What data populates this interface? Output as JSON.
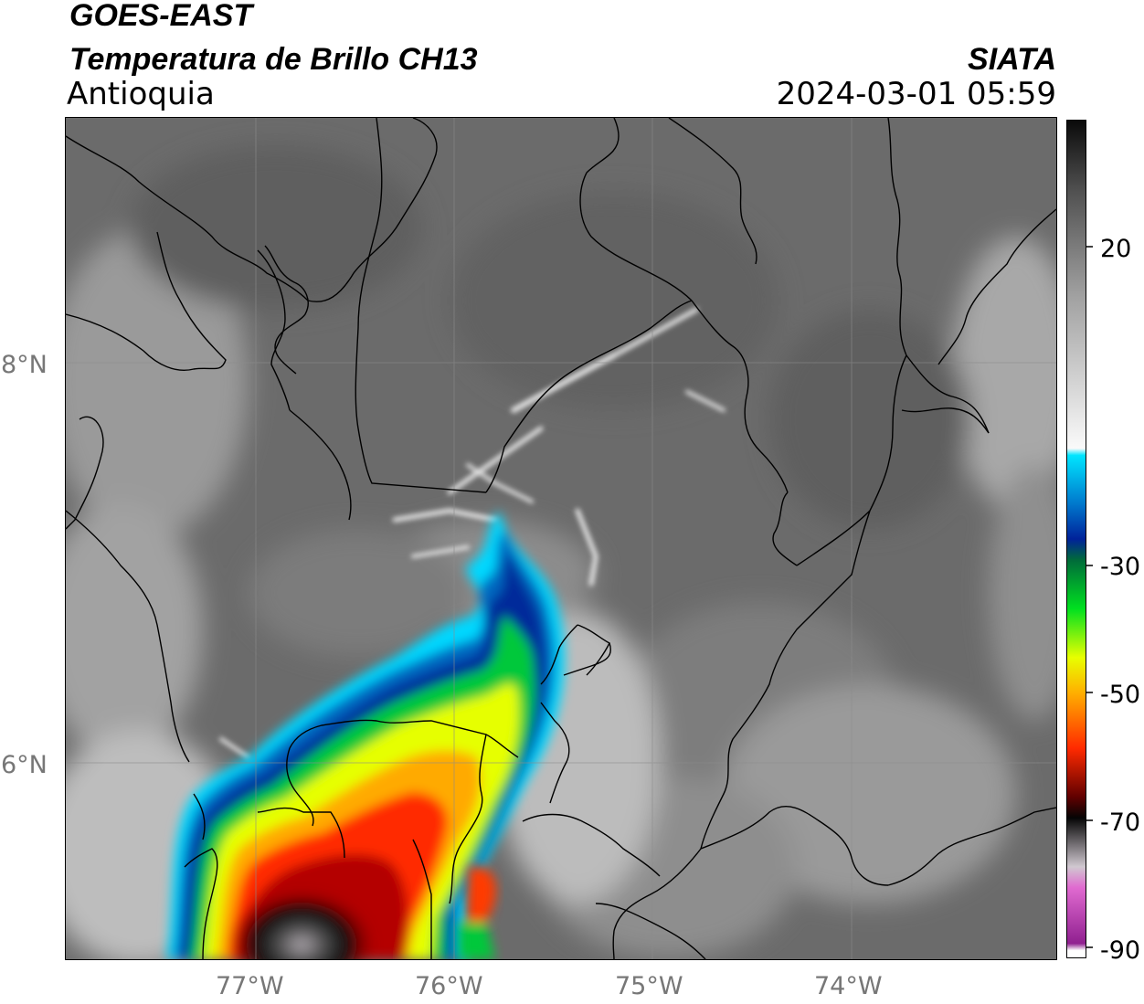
{
  "header": {
    "satellite": "GOES-EAST",
    "product": "Temperatura de Brillo CH13",
    "region": "Antioquia",
    "agency": "SIATA",
    "datetime": "2024-03-01 05:59"
  },
  "map": {
    "lon_labels": [
      "77°W",
      "76°W",
      "75°W",
      "74°W"
    ],
    "lat_labels": [
      "8°N",
      "6°N"
    ],
    "background": "#6a6a6a"
  },
  "colorbar": {
    "tick_labels": [
      "20",
      "-30",
      "-50",
      "-70",
      "-90"
    ],
    "range": [
      -90,
      30
    ],
    "stops": [
      {
        "t": 30,
        "color": "#0a0a0a"
      },
      {
        "t": 20,
        "color": "#505050"
      },
      {
        "t": 5,
        "color": "#a0a0a0"
      },
      {
        "t": -17,
        "color": "#fafafa"
      },
      {
        "t": -18,
        "color": "#00e5ff"
      },
      {
        "t": -25,
        "color": "#0077cc"
      },
      {
        "t": -30,
        "color": "#00229a"
      },
      {
        "t": -33,
        "color": "#006b3a"
      },
      {
        "t": -40,
        "color": "#00e020"
      },
      {
        "t": -47,
        "color": "#e8ff00"
      },
      {
        "t": -52,
        "color": "#ffb000"
      },
      {
        "t": -60,
        "color": "#ff2a00"
      },
      {
        "t": -67,
        "color": "#600000"
      },
      {
        "t": -70,
        "color": "#050505"
      },
      {
        "t": -77,
        "color": "#d0c8d0"
      },
      {
        "t": -80,
        "color": "#e06ad0"
      },
      {
        "t": -88,
        "color": "#902090"
      },
      {
        "t": -89,
        "color": "#ffffff"
      }
    ]
  }
}
